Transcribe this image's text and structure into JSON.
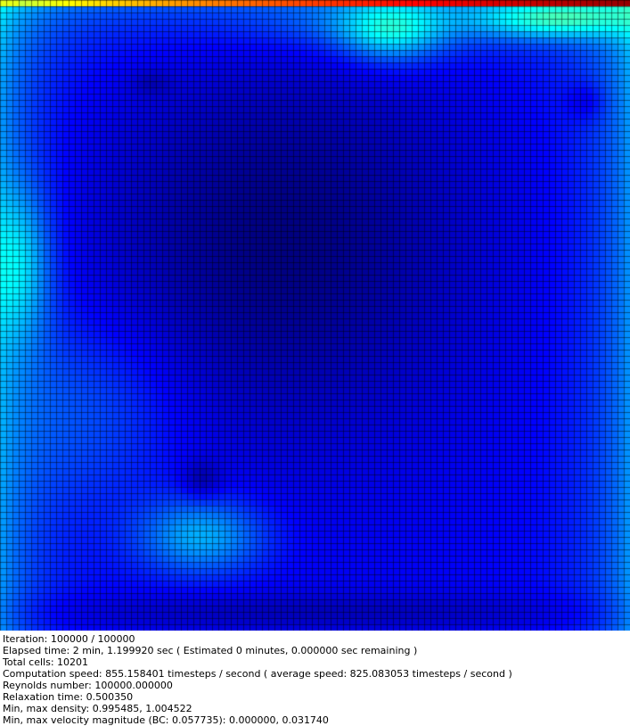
{
  "visualization": {
    "type": "velocity-magnitude-heatmap",
    "colormap": "jet",
    "grid_lines": true,
    "lid_side": "top"
  },
  "stats": [
    "Iteration: 100000 / 100000",
    "Elapsed time: 2 min, 1.199920 sec ( Estimated 0 minutes, 0.000000 sec remaining )",
    "Total cells: 10201",
    "Computation speed: 855.158401 timesteps / second ( average speed: 825.083053 timesteps / second )",
    "Reynolds number: 100000.000000",
    "Relaxation time: 0.500350",
    "Min, max density: 0.995485, 1.004522",
    "Min, max velocity magnitude (BC: 0.057735): 0.000000, 0.031740"
  ]
}
